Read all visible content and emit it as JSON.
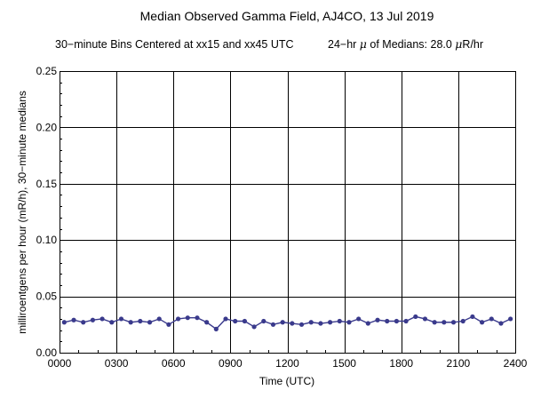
{
  "chart_data": {
    "type": "line",
    "title": "Median Observed Gamma Field, AJ4CO, 13 Jul 2019",
    "subtitle_left": "30−minute Bins Centered at xx15 and xx45 UTC",
    "subtitle_right_prefix": "24−hr ",
    "subtitle_right_mu": "μ",
    "subtitle_right_middle": " of Medians: 28.0 ",
    "subtitle_right_unit_mu": "μ",
    "subtitle_right_unit": "R/hr",
    "xlabel": "Time (UTC)",
    "ylabel": "milliroentgens per hour (mR/h), 30−minute medians",
    "xlim": [
      0,
      24
    ],
    "ylim": [
      0,
      0.25
    ],
    "x_ticks": [
      0,
      3,
      6,
      9,
      12,
      15,
      18,
      21,
      24
    ],
    "x_tick_labels": [
      "0000",
      "0300",
      "0600",
      "0900",
      "1200",
      "1500",
      "1800",
      "2100",
      "2400"
    ],
    "y_ticks": [
      0,
      0.05,
      0.1,
      0.15,
      0.2,
      0.25
    ],
    "y_tick_labels": [
      "0.00",
      "0.05",
      "0.10",
      "0.15",
      "0.20",
      "0.25"
    ],
    "grid": true,
    "series": [
      {
        "color": "#3a3a8c",
        "x": [
          0.25,
          0.75,
          1.25,
          1.75,
          2.25,
          2.75,
          3.25,
          3.75,
          4.25,
          4.75,
          5.25,
          5.75,
          6.25,
          6.75,
          7.25,
          7.75,
          8.25,
          8.75,
          9.25,
          9.75,
          10.25,
          10.75,
          11.25,
          11.75,
          12.25,
          12.75,
          13.25,
          13.75,
          14.25,
          14.75,
          15.25,
          15.75,
          16.25,
          16.75,
          17.25,
          17.75,
          18.25,
          18.75,
          19.25,
          19.75,
          20.25,
          20.75,
          21.25,
          21.75,
          22.25,
          22.75,
          23.25,
          23.75
        ],
        "values": [
          0.027,
          0.029,
          0.027,
          0.029,
          0.03,
          0.027,
          0.03,
          0.027,
          0.028,
          0.027,
          0.03,
          0.025,
          0.03,
          0.031,
          0.031,
          0.027,
          0.021,
          0.03,
          0.028,
          0.028,
          0.023,
          0.028,
          0.025,
          0.027,
          0.026,
          0.025,
          0.027,
          0.026,
          0.027,
          0.028,
          0.027,
          0.03,
          0.026,
          0.029,
          0.028,
          0.028,
          0.028,
          0.032,
          0.03,
          0.027,
          0.027,
          0.027,
          0.028,
          0.032,
          0.027,
          0.03,
          0.026,
          0.03
        ]
      }
    ]
  }
}
